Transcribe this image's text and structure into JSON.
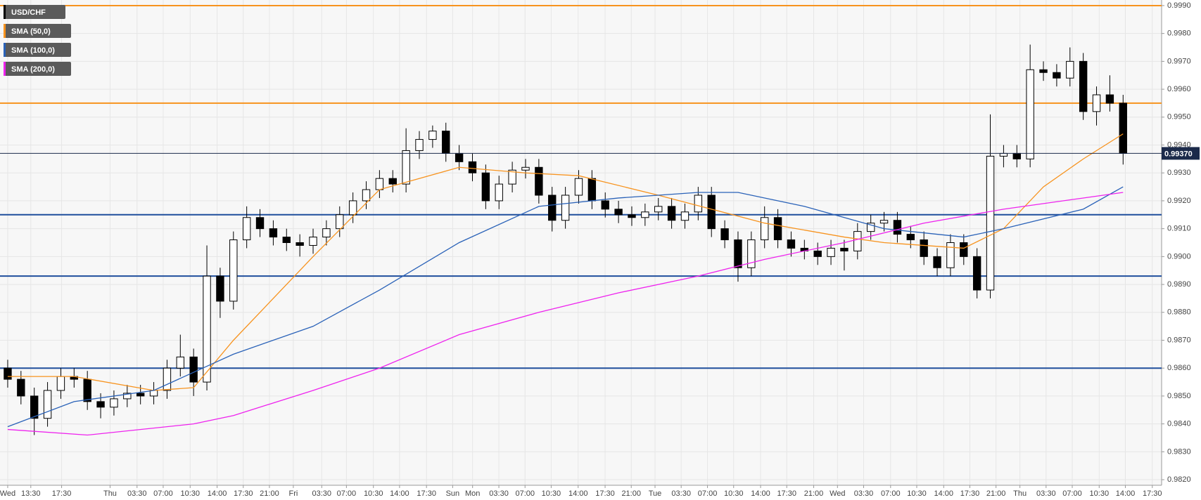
{
  "chart_data": {
    "type": "candlestick",
    "symbol": "USD/CHF",
    "symbol_color": "#000000",
    "up_color": "#ffffff",
    "down_color": "#000000",
    "open": [
      0.986,
      0.9856,
      0.985,
      0.9842,
      0.9852,
      0.9857,
      0.9856,
      0.9848,
      0.9846,
      0.9849,
      0.9851,
      0.985,
      0.9852,
      0.986,
      0.9864,
      0.9855,
      0.9893,
      0.9884,
      0.9906,
      0.9914,
      0.991,
      0.9907,
      0.9905,
      0.9904,
      0.9907,
      0.991,
      0.9915,
      0.992,
      0.9924,
      0.9928,
      0.9926,
      0.9938,
      0.9942,
      0.9945,
      0.9937,
      0.9934,
      0.993,
      0.992,
      0.9926,
      0.9931,
      0.9932,
      0.9922,
      0.9913,
      0.9922,
      0.9928,
      0.992,
      0.9917,
      0.9915,
      0.9914,
      0.9916,
      0.9918,
      0.9913,
      0.9916,
      0.9922,
      0.991,
      0.9906,
      0.9896,
      0.9906,
      0.9914,
      0.9906,
      0.9903,
      0.9902,
      0.99,
      0.9903,
      0.9902,
      0.9909,
      0.9912,
      0.9913,
      0.9908,
      0.9906,
      0.99,
      0.9896,
      0.9905,
      0.99,
      0.9888,
      0.9936,
      0.9937,
      0.9935,
      0.9967,
      0.9966,
      0.9964,
      0.997,
      0.9952,
      0.9958,
      0.9955
    ],
    "high": [
      0.9863,
      0.9859,
      0.9853,
      0.9855,
      0.986,
      0.986,
      0.9859,
      0.9851,
      0.9852,
      0.9854,
      0.9854,
      0.9855,
      0.9863,
      0.9872,
      0.9867,
      0.9904,
      0.9896,
      0.9909,
      0.9918,
      0.9917,
      0.9913,
      0.991,
      0.9908,
      0.991,
      0.9913,
      0.9918,
      0.9923,
      0.9927,
      0.9931,
      0.9931,
      0.9946,
      0.9945,
      0.9947,
      0.9948,
      0.994,
      0.9937,
      0.9933,
      0.9929,
      0.9934,
      0.9935,
      0.9935,
      0.9925,
      0.9925,
      0.9931,
      0.9931,
      0.9923,
      0.992,
      0.9918,
      0.9919,
      0.9921,
      0.9921,
      0.9919,
      0.9925,
      0.9925,
      0.9913,
      0.9909,
      0.9909,
      0.9918,
      0.9917,
      0.9909,
      0.9906,
      0.9905,
      0.9906,
      0.9906,
      0.9912,
      0.9915,
      0.9916,
      0.9916,
      0.9911,
      0.9909,
      0.9903,
      0.9908,
      0.9908,
      0.9903,
      0.9951,
      0.994,
      0.994,
      0.9976,
      0.997,
      0.9969,
      0.9975,
      0.9973,
      0.9961,
      0.9965,
      0.9958
    ],
    "low": [
      0.9853,
      0.9847,
      0.9836,
      0.9839,
      0.9849,
      0.9853,
      0.9845,
      0.9842,
      0.9843,
      0.9846,
      0.9847,
      0.9847,
      0.9849,
      0.9857,
      0.985,
      0.9852,
      0.9878,
      0.9881,
      0.9903,
      0.9907,
      0.9904,
      0.9902,
      0.99,
      0.9901,
      0.9904,
      0.9907,
      0.9912,
      0.9917,
      0.9921,
      0.9923,
      0.9923,
      0.9935,
      0.9939,
      0.9934,
      0.9931,
      0.9927,
      0.9917,
      0.9917,
      0.9923,
      0.9928,
      0.9919,
      0.9909,
      0.991,
      0.9919,
      0.9917,
      0.9914,
      0.9912,
      0.9911,
      0.9911,
      0.9913,
      0.991,
      0.991,
      0.9913,
      0.9907,
      0.9903,
      0.9891,
      0.9893,
      0.9903,
      0.9903,
      0.99,
      0.9899,
      0.9897,
      0.9897,
      0.9895,
      0.9899,
      0.9906,
      0.9909,
      0.9905,
      0.9903,
      0.9897,
      0.9893,
      0.9893,
      0.9897,
      0.9885,
      0.9885,
      0.9932,
      0.9932,
      0.9932,
      0.9963,
      0.9961,
      0.9961,
      0.9949,
      0.9947,
      0.9952,
      0.9933
    ],
    "close": [
      0.9856,
      0.985,
      0.9842,
      0.9852,
      0.9857,
      0.9856,
      0.9848,
      0.9846,
      0.9849,
      0.9851,
      0.985,
      0.9852,
      0.986,
      0.9864,
      0.9855,
      0.9893,
      0.9884,
      0.9906,
      0.9914,
      0.991,
      0.9907,
      0.9905,
      0.9904,
      0.9907,
      0.991,
      0.9915,
      0.992,
      0.9924,
      0.9928,
      0.9926,
      0.9938,
      0.9942,
      0.9945,
      0.9937,
      0.9934,
      0.993,
      0.992,
      0.9926,
      0.9931,
      0.9932,
      0.9922,
      0.9913,
      0.9922,
      0.9928,
      0.992,
      0.9917,
      0.9915,
      0.9914,
      0.9916,
      0.9918,
      0.9913,
      0.9916,
      0.9922,
      0.991,
      0.9906,
      0.9896,
      0.9906,
      0.9914,
      0.9906,
      0.9903,
      0.9902,
      0.99,
      0.9903,
      0.9902,
      0.9909,
      0.9912,
      0.9913,
      0.9908,
      0.9906,
      0.99,
      0.9896,
      0.9905,
      0.99,
      0.9888,
      0.9936,
      0.9937,
      0.9935,
      0.9967,
      0.9966,
      0.9964,
      0.997,
      0.9952,
      0.9958,
      0.9955,
      0.9937
    ],
    "series": [
      {
        "name": "SMA (50,0)",
        "color": "#f7931e",
        "x": [
          0,
          5,
          11,
          14,
          17,
          23,
          28,
          34,
          39,
          43,
          49,
          53,
          57,
          63,
          66,
          72,
          75,
          78,
          81,
          84
        ],
        "values": [
          0.9857,
          0.9857,
          0.9852,
          0.9853,
          0.987,
          0.99,
          0.9924,
          0.9932,
          0.993,
          0.9929,
          0.9922,
          0.9917,
          0.9912,
          0.9907,
          0.9905,
          0.9903,
          0.991,
          0.9925,
          0.9935,
          0.9944
        ]
      },
      {
        "name": "SMA (100,0)",
        "color": "#2a62b8",
        "x": [
          0,
          5,
          11,
          17,
          23,
          28,
          34,
          40,
          46,
          52,
          55,
          60,
          66,
          72,
          75,
          81,
          84
        ],
        "values": [
          0.9839,
          0.9848,
          0.9852,
          0.9865,
          0.9875,
          0.9888,
          0.9905,
          0.9918,
          0.9921,
          0.9923,
          0.9923,
          0.9918,
          0.991,
          0.9907,
          0.991,
          0.9917,
          0.9925
        ]
      },
      {
        "name": "SMA (200,0)",
        "color": "#ee22ee",
        "x": [
          0,
          6,
          14,
          17,
          23,
          28,
          34,
          40,
          46,
          52,
          57,
          63,
          69,
          75,
          81,
          84
        ],
        "values": [
          0.9838,
          0.9836,
          0.984,
          0.9843,
          0.9852,
          0.986,
          0.9872,
          0.988,
          0.9887,
          0.9893,
          0.9899,
          0.9905,
          0.9912,
          0.9917,
          0.9921,
          0.9923
        ]
      }
    ],
    "levels": [
      {
        "value": 0.999,
        "color": "#f7931e"
      },
      {
        "value": 0.9955,
        "color": "#f7931e"
      },
      {
        "value": 0.9915,
        "color": "#1f4e9c"
      },
      {
        "value": 0.9893,
        "color": "#1f4e9c"
      },
      {
        "value": 0.986,
        "color": "#1f4e9c"
      }
    ],
    "last_price": {
      "value": 0.9937,
      "label": "0.99370"
    },
    "grid": true,
    "xlim": [
      -0.58,
      86.9
    ],
    "xticks": [
      {
        "value": 0,
        "label": "Wed"
      },
      {
        "value": 1.74,
        "label": "13:30"
      },
      {
        "value": 4.06,
        "label": "17:30"
      },
      {
        "value": 7.71,
        "label": "Thu"
      },
      {
        "value": 9.74,
        "label": "03:30"
      },
      {
        "value": 11.71,
        "label": "07:00"
      },
      {
        "value": 13.74,
        "label": "10:30"
      },
      {
        "value": 15.77,
        "label": "14:00"
      },
      {
        "value": 17.74,
        "label": "17:30"
      },
      {
        "value": 19.71,
        "label": "21:00"
      },
      {
        "value": 21.51,
        "label": "Fri"
      },
      {
        "value": 23.65,
        "label": "03:30"
      },
      {
        "value": 25.51,
        "label": "07:00"
      },
      {
        "value": 27.54,
        "label": "10:30"
      },
      {
        "value": 29.51,
        "label": "14:00"
      },
      {
        "value": 31.54,
        "label": "17:30"
      },
      {
        "value": 33.51,
        "label": "Sun"
      },
      {
        "value": 35.01,
        "label": "Mon"
      },
      {
        "value": 36.99,
        "label": "03:30"
      },
      {
        "value": 38.96,
        "label": "07:00"
      },
      {
        "value": 40.93,
        "label": "10:30"
      },
      {
        "value": 42.96,
        "label": "14:00"
      },
      {
        "value": 44.99,
        "label": "17:30"
      },
      {
        "value": 46.96,
        "label": "21:00"
      },
      {
        "value": 48.75,
        "label": "Tue"
      },
      {
        "value": 50.72,
        "label": "03:30"
      },
      {
        "value": 52.7,
        "label": "07:00"
      },
      {
        "value": 54.67,
        "label": "10:30"
      },
      {
        "value": 56.7,
        "label": "14:00"
      },
      {
        "value": 58.67,
        "label": "17:30"
      },
      {
        "value": 60.7,
        "label": "21:00"
      },
      {
        "value": 62.49,
        "label": "Wed"
      },
      {
        "value": 64.46,
        "label": "03:30"
      },
      {
        "value": 66.49,
        "label": "07:00"
      },
      {
        "value": 68.46,
        "label": "10:30"
      },
      {
        "value": 70.49,
        "label": "14:00"
      },
      {
        "value": 72.46,
        "label": "17:30"
      },
      {
        "value": 74.43,
        "label": "21:00"
      },
      {
        "value": 76.23,
        "label": "Thu"
      },
      {
        "value": 78.2,
        "label": "03:30"
      },
      {
        "value": 80.17,
        "label": "07:00"
      },
      {
        "value": 82.2,
        "label": "10:30"
      },
      {
        "value": 84.17,
        "label": "14:00"
      },
      {
        "value": 86.2,
        "label": "17:30"
      }
    ],
    "ylim": [
      0.9818,
      0.9992
    ],
    "yticks": [
      {
        "value": 0.999,
        "label": "0.9990"
      },
      {
        "value": 0.998,
        "label": "0.9980"
      },
      {
        "value": 0.997,
        "label": "0.9970"
      },
      {
        "value": 0.996,
        "label": "0.9960"
      },
      {
        "value": 0.995,
        "label": "0.9950"
      },
      {
        "value": 0.994,
        "label": "0.9940"
      },
      {
        "value": 0.993,
        "label": "0.9930"
      },
      {
        "value": 0.992,
        "label": "0.9920"
      },
      {
        "value": 0.991,
        "label": "0.9910"
      },
      {
        "value": 0.99,
        "label": "0.9900"
      },
      {
        "value": 0.989,
        "label": "0.9890"
      },
      {
        "value": 0.988,
        "label": "0.9880"
      },
      {
        "value": 0.987,
        "label": "0.9870"
      },
      {
        "value": 0.986,
        "label": "0.9860"
      },
      {
        "value": 0.985,
        "label": "0.9850"
      },
      {
        "value": 0.984,
        "label": "0.9840"
      },
      {
        "value": 0.983,
        "label": "0.9830"
      },
      {
        "value": 0.982,
        "label": "0.9820"
      }
    ]
  }
}
